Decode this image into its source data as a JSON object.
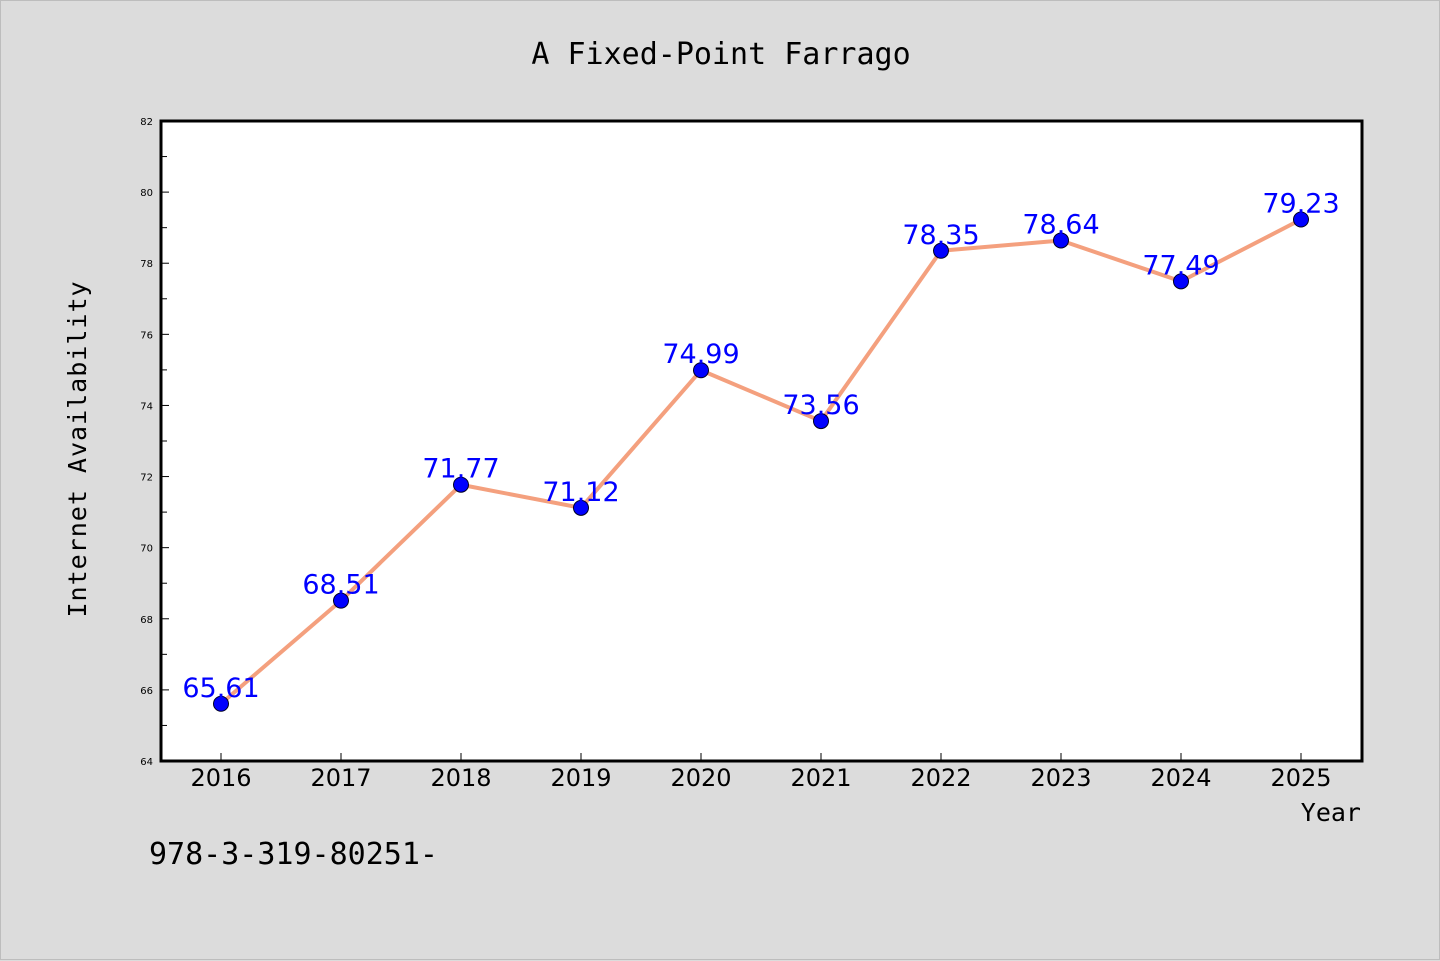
{
  "chart_data": {
    "type": "line",
    "title": "A Fixed-Point Farrago",
    "xlabel": "Year",
    "ylabel": "Internet Availability",
    "categories": [
      "2016",
      "2017",
      "2018",
      "2019",
      "2020",
      "2021",
      "2022",
      "2023",
      "2024",
      "2025"
    ],
    "series": [
      {
        "values": [
          65.61,
          68.51,
          71.77,
          71.12,
          74.99,
          73.56,
          78.35,
          78.64,
          77.49,
          79.23
        ],
        "data_labels": [
          "65.61",
          "68.51",
          "71.77",
          "71.12",
          "74.99",
          "73.56",
          "78.35",
          "78.64",
          "77.49",
          "79.23"
        ],
        "line_color": "#f4a07e",
        "marker_color": "#0000ff"
      }
    ],
    "ylim": [
      64,
      82
    ],
    "yticks": [
      "64",
      "66",
      "68",
      "70",
      "72",
      "74",
      "76",
      "78",
      "80",
      "82"
    ],
    "grid": false,
    "legend": "none"
  },
  "footnote": "978-3-319-80251-"
}
